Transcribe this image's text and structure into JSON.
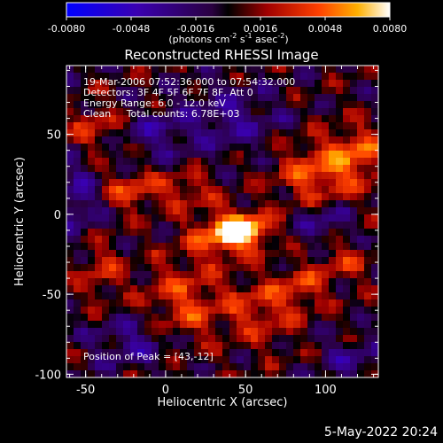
{
  "chart_data": {
    "type": "heatmap",
    "title": "Reconstructed RHESSI Image",
    "xlabel": "Heliocentric X (arcsec)",
    "ylabel": "Heliocentric Y (arcsec)",
    "xlim": [
      -62,
      133
    ],
    "ylim": [
      -102,
      93
    ],
    "x_ticks": [
      -50,
      0,
      50,
      100
    ],
    "x_tick_labels": [
      "-50",
      "0",
      "50",
      "100"
    ],
    "y_ticks": [
      -100,
      -50,
      0,
      50
    ],
    "y_tick_labels": [
      "-100",
      "-50",
      "0",
      "50"
    ],
    "colorbar": {
      "range": [
        -0.008,
        0.008
      ],
      "ticks": [
        -0.008,
        -0.0048,
        -0.0016,
        0.0016,
        0.0048,
        0.008
      ],
      "tick_labels": [
        "-0.0080",
        "-0.0048",
        "-0.0016",
        "0.0016",
        "0.0048",
        "0.0080"
      ],
      "units_label": "(photons cm",
      "units_exp1": "-2",
      "units_mid": " s",
      "units_exp2": "-1",
      "units_mid2": " asec",
      "units_exp3": "-2",
      "units_end": ")"
    },
    "info_lines": [
      "19-Mar-2006 07:52:36.000 to 07:54:32.000",
      "Detectors: 3F 4F 5F 6F 7F 8F, Att 0",
      "Energy Range: 6.0 - 12.0 keV",
      "Clean     Total counts: 6.78E+03"
    ],
    "peak_label": "Position of Peak = [43,-12]",
    "peak": [
      43,
      -12
    ],
    "sources": [
      {
        "x": 48,
        "y": -10,
        "amp": 0.0082,
        "sx": 11,
        "sy": 7
      },
      {
        "x": 34,
        "y": -14,
        "amp": 0.004,
        "sx": 14,
        "sy": 10
      },
      {
        "x": 95,
        "y": 25,
        "amp": 0.0042,
        "sx": 18,
        "sy": 14
      },
      {
        "x": 120,
        "y": 38,
        "amp": 0.0038,
        "sx": 12,
        "sy": 12
      },
      {
        "x": -20,
        "y": 15,
        "amp": 0.0034,
        "sx": 14,
        "sy": 9
      },
      {
        "x": 15,
        "y": 15,
        "amp": 0.0028,
        "sx": 10,
        "sy": 8
      },
      {
        "x": -45,
        "y": 55,
        "amp": 0.003,
        "sx": 10,
        "sy": 10
      },
      {
        "x": 10,
        "y": -55,
        "amp": 0.0036,
        "sx": 16,
        "sy": 18
      },
      {
        "x": 60,
        "y": -60,
        "amp": 0.0032,
        "sx": 18,
        "sy": 14
      },
      {
        "x": 85,
        "y": -45,
        "amp": 0.0028,
        "sx": 10,
        "sy": 8
      },
      {
        "x": -40,
        "y": -35,
        "amp": 0.0026,
        "sx": 10,
        "sy": 14
      },
      {
        "x": 110,
        "y": -30,
        "amp": 0.0026,
        "sx": 12,
        "sy": 10
      },
      {
        "x": 40,
        "y": 60,
        "amp": -0.003,
        "sx": 22,
        "sy": 14
      },
      {
        "x": -5,
        "y": 50,
        "amp": -0.0026,
        "sx": 14,
        "sy": 10
      },
      {
        "x": -55,
        "y": 10,
        "amp": -0.0034,
        "sx": 10,
        "sy": 16
      },
      {
        "x": 100,
        "y": -5,
        "amp": -0.003,
        "sx": 12,
        "sy": 10
      },
      {
        "x": -20,
        "y": -80,
        "amp": -0.003,
        "sx": 18,
        "sy": 12
      },
      {
        "x": 115,
        "y": -90,
        "amp": -0.0026,
        "sx": 12,
        "sy": 10
      }
    ]
  },
  "footer": {
    "date": "5-May-2022 20:24"
  }
}
